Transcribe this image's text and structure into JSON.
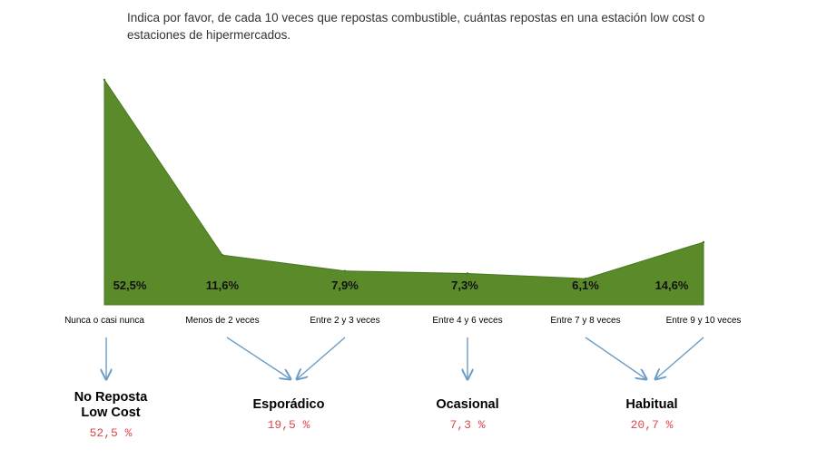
{
  "chart_data": {
    "type": "area",
    "title": "Indica por favor, de cada 10 veces que repostas combustible, cuántas repostas en una estación low cost o estaciones de hipermercados.",
    "categories": [
      "Nunca o casi nunca",
      "Menos de 2 veces",
      "Entre 2 y 3 veces",
      "Entre 4 y 6 veces",
      "Entre 7 y 8 veces",
      "Entre 9 y 10 veces"
    ],
    "values": [
      52.5,
      11.6,
      7.9,
      7.3,
      6.1,
      14.6
    ],
    "value_labels": [
      "52,5%",
      "11,6%",
      "7,9%",
      "7,3%",
      "6,1%",
      "14,6%"
    ],
    "unit": "%",
    "grid": false,
    "legend": "none",
    "fill_color": "#5a8a2a",
    "edge_color": "#4a7722",
    "groups": [
      {
        "label": "No Reposta\nLow Cost",
        "value": "52,5 %",
        "members": [
          0
        ]
      },
      {
        "label": "Esporádico",
        "value": "19,5 %",
        "members": [
          1,
          2
        ]
      },
      {
        "label": "Ocasional",
        "value": "7,3 %",
        "members": [
          3
        ]
      },
      {
        "label": "Habitual",
        "value": "20,7 %",
        "members": [
          4,
          5
        ]
      }
    ],
    "arrow_color": "#6b9dc7",
    "group_value_color": "#e0464b"
  }
}
